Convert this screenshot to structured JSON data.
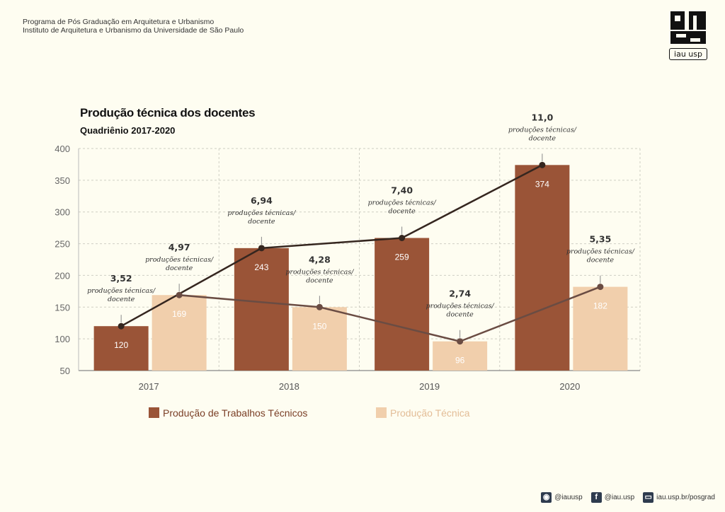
{
  "header": {
    "line1": "Programa de Pós Graduação em Arquitetura e Urbanismo",
    "line2": "Instituto de Arquitetura e Urbanismo da Universidade de São Paulo"
  },
  "logo": {
    "text": "iau usp"
  },
  "footer": {
    "instagram": "@iauusp",
    "facebook": "@iau.usp",
    "website": "iau.usp.br/posgrad"
  },
  "colors": {
    "trabalhos": "#9a5437",
    "producao": "#f1cfac",
    "line_trabalhos": "#35261f",
    "line_producao": "#6a4c43",
    "background": "#fefdf1"
  },
  "chart_data": {
    "type": "bar",
    "title": "Produção técnica dos docentes",
    "subtitle": "Quadriênio 2017-2020",
    "categories": [
      "2017",
      "2018",
      "2019",
      "2020"
    ],
    "ylim": [
      50,
      400
    ],
    "yticks": [
      50,
      100,
      150,
      200,
      250,
      300,
      350,
      400
    ],
    "grid": true,
    "legend_position": "bottom",
    "series": [
      {
        "name": "Produção de Trabalhos Técnicos",
        "values": [
          120,
          243,
          259,
          374
        ],
        "ratios": [
          "3,52",
          "6,94",
          "7,40",
          "11,0"
        ]
      },
      {
        "name": "Produção Técnica",
        "values": [
          169,
          150,
          96,
          182
        ],
        "ratios": [
          "4,97",
          "4,28",
          "2,74",
          "5,35"
        ]
      }
    ],
    "ratio_label": [
      "produções técnicas/",
      "docente"
    ]
  }
}
